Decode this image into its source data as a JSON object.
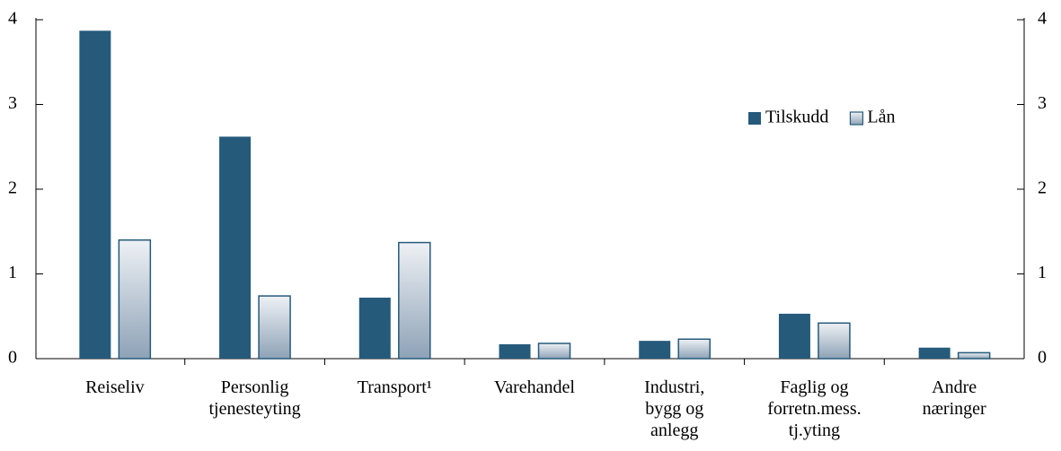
{
  "chart_data": {
    "type": "bar",
    "categories": [
      "Reiseliv",
      "Personlig\ntjenesteyting",
      "Transport¹",
      "Varehandel",
      "Industri,\nbygg og\nanlegg",
      "Faglig og\nforretn.mess.\ntj.yting",
      "Andre\nnæringer"
    ],
    "series": [
      {
        "name": "Tilskudd",
        "color": "#255a7b",
        "values": [
          3.87,
          2.62,
          0.72,
          0.17,
          0.21,
          0.53,
          0.13
        ]
      },
      {
        "name": "Lån",
        "color": "#c9d2dc",
        "values": [
          1.4,
          0.74,
          1.37,
          0.18,
          0.23,
          0.42,
          0.07
        ]
      }
    ],
    "ylim": [
      0,
      4
    ],
    "yticks": [
      0,
      1,
      2,
      3,
      4
    ],
    "y2lim": [
      0,
      4
    ],
    "y2ticks": [
      0,
      1,
      2,
      3,
      4
    ],
    "legend": "upper right",
    "grid": false
  }
}
